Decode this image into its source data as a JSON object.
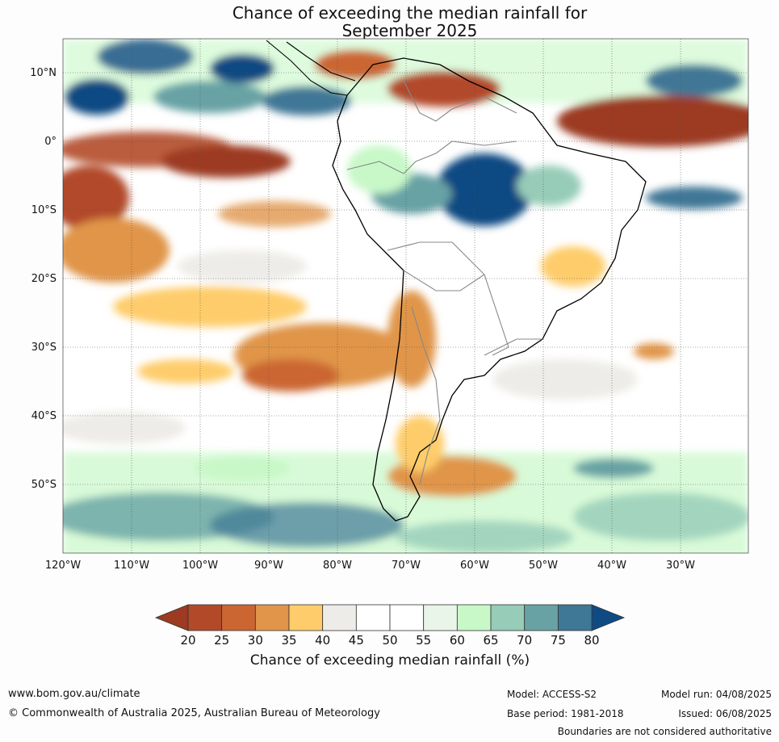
{
  "title": {
    "line1": "Chance of exceeding the median rainfall for",
    "line2": "September 2025"
  },
  "lat_labels": [
    "10°N",
    "0°",
    "10°S",
    "20°S",
    "30°S",
    "40°S",
    "50°S"
  ],
  "lon_labels": [
    "120°W",
    "110°W",
    "100°W",
    "90°W",
    "80°W",
    "70°W",
    "60°W",
    "50°W",
    "40°W",
    "30°W"
  ],
  "colorbar": {
    "ticks": [
      "20",
      "25",
      "30",
      "35",
      "40",
      "45",
      "50",
      "55",
      "60",
      "65",
      "70",
      "75",
      "80"
    ],
    "colors": [
      "#9c3a22",
      "#b24a2a",
      "#cb6632",
      "#e0954a",
      "#fecc6a",
      "#eeece8",
      "#ffffff",
      "#ffffff",
      "#e8f5e8",
      "#c8f8c8",
      "#96ccb8",
      "#68a2a4",
      "#3f7796",
      "#0f4a82"
    ],
    "label": "Chance of exceeding median rainfall (%)"
  },
  "footer": {
    "website": "www.bom.gov.au/climate",
    "copyright": "© Commonwealth of Australia 2025, Australian Bureau of Meteorology",
    "model": "Model: ACCESS-S2",
    "base_period": "Base period: 1981-2018",
    "model_run": "Model run: 04/08/2025",
    "issued": "Issued: 06/08/2025",
    "disclaimer": "Boundaries are not considered authoritative"
  }
}
